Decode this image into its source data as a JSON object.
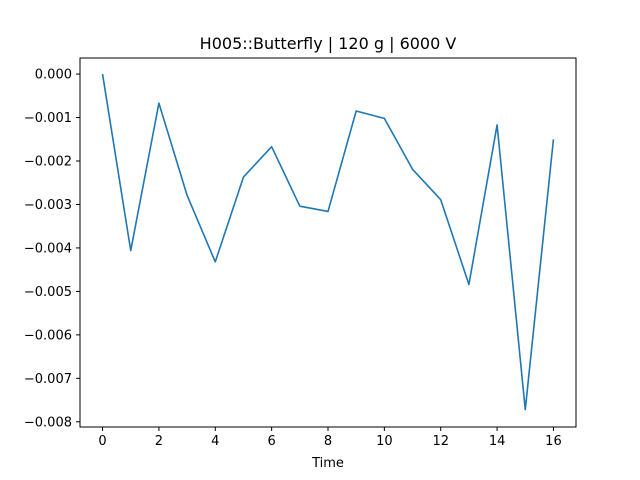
{
  "chart_data": {
    "type": "line",
    "title": "H005::Butterfly | 120 g | 6000 V",
    "xlabel": "Time",
    "ylabel": "",
    "xlim": [
      -0.8,
      16.8
    ],
    "ylim": [
      -0.00812,
      0.00037
    ],
    "xticks": [
      0,
      2,
      4,
      6,
      8,
      10,
      12,
      14,
      16
    ],
    "xtick_labels": [
      "0",
      "2",
      "4",
      "6",
      "8",
      "10",
      "12",
      "14",
      "16"
    ],
    "yticks": [
      0.0,
      -0.001,
      -0.002,
      -0.003,
      -0.004,
      -0.005,
      -0.006,
      -0.007,
      -0.008
    ],
    "ytick_labels": [
      "0.000",
      "−0.001",
      "−0.002",
      "−0.003",
      "−0.004",
      "−0.005",
      "−0.006",
      "−0.007",
      "−0.008"
    ],
    "grid": false,
    "series": [
      {
        "color": "#1f77b4",
        "x": [
          0,
          1,
          2,
          3,
          4,
          5,
          6,
          7,
          8,
          9,
          10,
          11,
          12,
          13,
          14,
          15,
          16
        ],
        "y": [
          0.0,
          -0.00406,
          -0.00067,
          -0.00279,
          -0.00432,
          -0.00237,
          -0.00167,
          -0.00304,
          -0.00316,
          -0.00085,
          -0.00102,
          -0.00219,
          -0.00289,
          -0.00484,
          -0.00117,
          -0.00772,
          -0.0015
        ]
      }
    ]
  }
}
